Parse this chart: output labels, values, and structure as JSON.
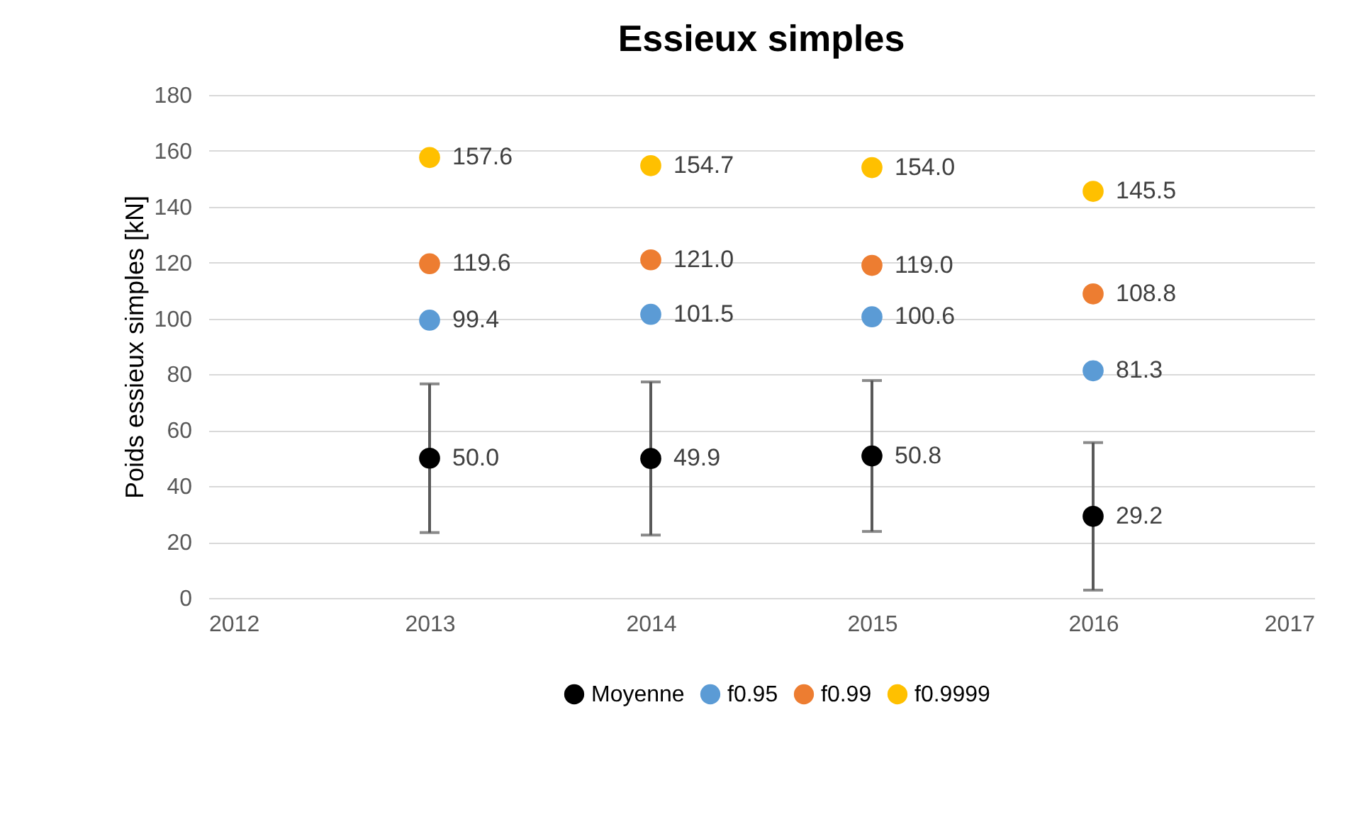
{
  "chart_data": {
    "type": "scatter",
    "title": "Essieux simples",
    "ylabel": "Poids essieux simples [kN]",
    "x": [
      2013,
      2014,
      2015,
      2016
    ],
    "series": [
      {
        "name": "Moyenne",
        "color": "#000000",
        "values": [
          50.0,
          49.9,
          50.8,
          29.2
        ],
        "value_labels": [
          "50.0",
          "49.9",
          "50.8",
          "29.2"
        ],
        "errors": [
          26.6,
          27.4,
          27.0,
          26.4
        ]
      },
      {
        "name": "f0.95",
        "color": "#5b9bd5",
        "values": [
          99.4,
          101.5,
          100.6,
          81.3
        ],
        "value_labels": [
          "99.4",
          "101.5",
          "100.6",
          "81.3"
        ]
      },
      {
        "name": "f0.99",
        "color": "#ed7d31",
        "values": [
          119.6,
          121.0,
          119.0,
          108.8
        ],
        "value_labels": [
          "119.6",
          "121.0",
          "119.0",
          "108.8"
        ]
      },
      {
        "name": "f0.9999",
        "color": "#ffc000",
        "values": [
          157.6,
          154.7,
          154.0,
          145.5
        ],
        "value_labels": [
          "157.6",
          "154.7",
          "154.0",
          "145.5"
        ]
      }
    ],
    "xlim": [
      2012,
      2017
    ],
    "xticks": [
      2012,
      2013,
      2014,
      2015,
      2016,
      2017
    ],
    "ylim": [
      0,
      180
    ],
    "yticks": [
      0,
      20,
      40,
      60,
      80,
      100,
      120,
      140,
      160,
      180
    ],
    "grid": "y",
    "legend": "bottom",
    "marker": "circle"
  }
}
